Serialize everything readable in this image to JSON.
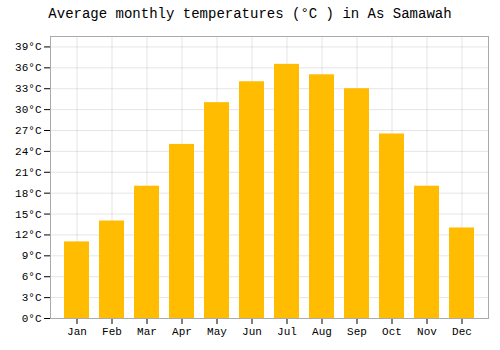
{
  "chart_data": {
    "type": "bar",
    "title": "Average monthly temperatures (°C ) in As Samawah",
    "categories": [
      "Jan",
      "Feb",
      "Mar",
      "Apr",
      "May",
      "Jun",
      "Jul",
      "Aug",
      "Sep",
      "Oct",
      "Nov",
      "Dec"
    ],
    "values": [
      11,
      14,
      19,
      25,
      31,
      34,
      36.5,
      35,
      33,
      26.5,
      19,
      13
    ],
    "color": "#FFBC00",
    "ylim": [
      0,
      40.5
    ],
    "yticks": [
      {
        "value": 0,
        "label": "0°C"
      },
      {
        "value": 3,
        "label": "3°C"
      },
      {
        "value": 6,
        "label": "6°C"
      },
      {
        "value": 9,
        "label": "9°C"
      },
      {
        "value": 12,
        "label": "12°C"
      },
      {
        "value": 15,
        "label": "15°C"
      },
      {
        "value": 18,
        "label": "18°C"
      },
      {
        "value": 21,
        "label": "21°C"
      },
      {
        "value": 24,
        "label": "24°C"
      },
      {
        "value": 27,
        "label": "27°C"
      },
      {
        "value": 30,
        "label": "30°C"
      },
      {
        "value": 33,
        "label": "33°C"
      },
      {
        "value": 36,
        "label": "36°C"
      },
      {
        "value": 39,
        "label": "39°C"
      }
    ],
    "grid": true
  }
}
